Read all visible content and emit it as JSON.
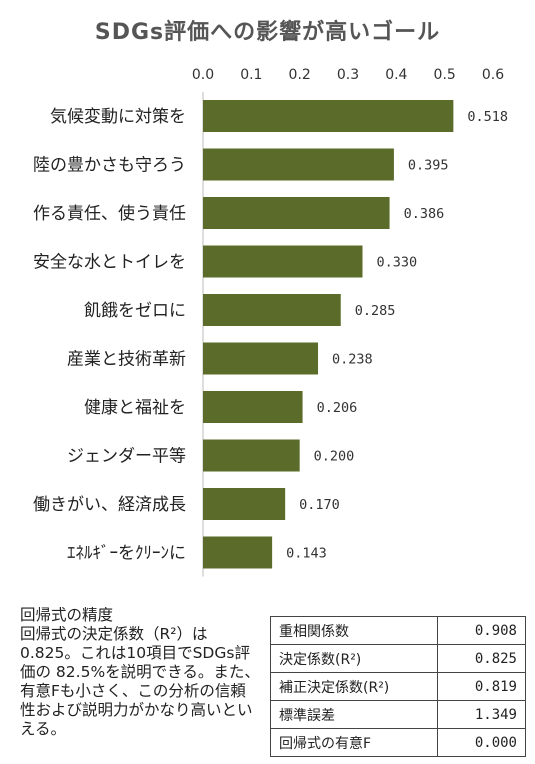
{
  "chart_data": {
    "type": "bar",
    "orientation": "horizontal",
    "title": "SDGs評価への影響が高いゴール",
    "categories": [
      "気候変動に対策を",
      "陸の豊かさも守ろう",
      "作る責任、使う責任",
      "安全な水とトイレを",
      "飢餓をゼロに",
      "産業と技術革新",
      "健康と福祉を",
      "ジェンダー平等",
      "働きがい、経済成長",
      "ｴﾈﾙｷﾞｰをｸﾘｰﾝに"
    ],
    "values": [
      0.518,
      0.395,
      0.386,
      0.33,
      0.285,
      0.238,
      0.206,
      0.2,
      0.17,
      0.143
    ],
    "value_labels": [
      "0.518",
      "0.395",
      "0.386",
      "0.330",
      "0.285",
      "0.238",
      "0.206",
      "0.200",
      "0.170",
      "0.143"
    ],
    "xlim": [
      0,
      0.6
    ],
    "xticks": [
      "0.0",
      "0.1",
      "0.2",
      "0.3",
      "0.4",
      "0.5",
      "0.6"
    ],
    "axis_position": "top",
    "grid": false,
    "bar_color": "#5a6b2a"
  },
  "note": {
    "title": "回帰式の精度",
    "body": "回帰式の決定係数（R²）は0.825。これは10項目でSDGs評価の 82.5%を説明できる。また、有意Fも小さく、この分析の信頼性および説明力がかなり高いといえる。"
  },
  "stats_table": [
    {
      "label": "重相関係数",
      "value": "0.908"
    },
    {
      "label": "決定係数(R²)",
      "value": "0.825"
    },
    {
      "label": "補正決定係数(R²)",
      "value": "0.819"
    },
    {
      "label": "標準誤差",
      "value": "1.349"
    },
    {
      "label": "回帰式の有意F",
      "value": "0.000"
    }
  ]
}
